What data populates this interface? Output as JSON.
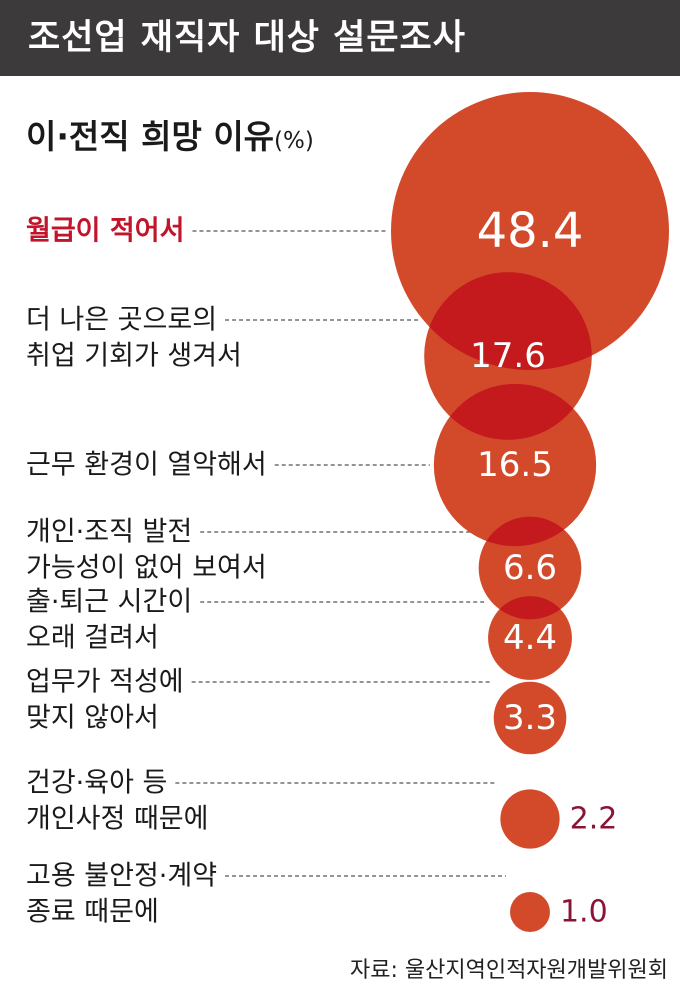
{
  "header": {
    "title": "조선업 재직자 대상 설문조사"
  },
  "subtitle": {
    "text": "이·전직 희망 이유",
    "unit": "(%)"
  },
  "source": {
    "text": "자료: 울산지역인적자원개발위원회"
  },
  "colors": {
    "bubble": "#d34a2b",
    "overlap": "#c41a1e",
    "highlight": "#c0152a",
    "outside_value": "#8a1436",
    "header_bg": "#3c3a3a"
  },
  "chart_data": {
    "type": "bubble",
    "title": "이·전직 희망 이유",
    "unit": "%",
    "categories": [
      [
        "월급이 적어서"
      ],
      [
        "더 나은 곳으로의",
        "취업 기회가 생겨서"
      ],
      [
        "근무 환경이 열악해서"
      ],
      [
        "개인·조직 발전",
        "가능성이 없어 보여서"
      ],
      [
        "출·퇴근 시간이",
        "오래 걸려서"
      ],
      [
        "업무가 적성에",
        "맞지 않아서"
      ],
      [
        "건강·육아 등",
        "개인사정 때문에"
      ],
      [
        "고용 불안정·계약",
        "종료 때문에"
      ]
    ],
    "values": [
      48.4,
      17.6,
      16.5,
      6.6,
      4.4,
      3.3,
      2.2,
      1.0
    ],
    "value_labels": [
      "48.4",
      "17.6",
      "16.5",
      "6.6",
      "4.4",
      "3.3",
      "2.2",
      "1.0"
    ],
    "highlight_index": 0
  }
}
